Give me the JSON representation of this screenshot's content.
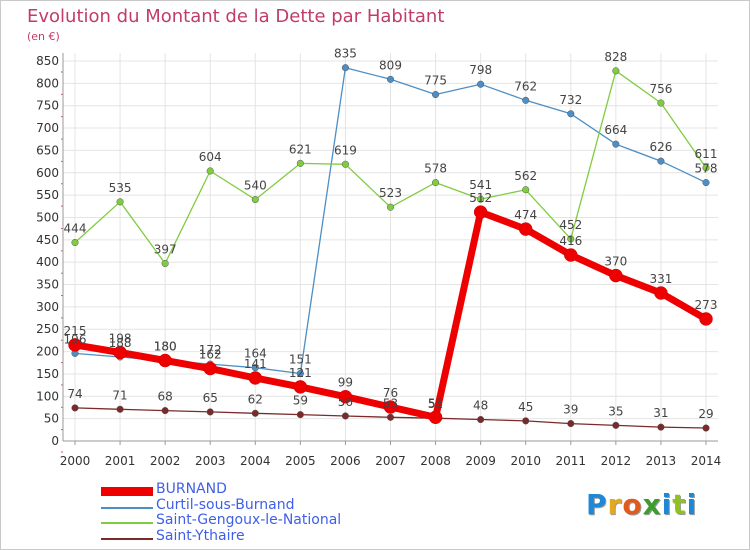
{
  "title": "Evolution du Montant de la Dette par Habitant",
  "subtitle": "(en €)",
  "logo": {
    "text": "Proxiti",
    "colors": [
      "#1e88d6",
      "#e5aa1b",
      "#e05a1b",
      "#3c9d2c",
      "#1e88d6",
      "#8fc21d",
      "#1e88d6"
    ]
  },
  "chart_data": {
    "type": "line",
    "title": "Evolution du Montant de la Dette par Habitant",
    "subtitle": "(en €)",
    "x": [
      "2000",
      "2001",
      "2002",
      "2003",
      "2004",
      "2005",
      "2006",
      "2007",
      "2008",
      "2009",
      "2010",
      "2011",
      "2012",
      "2013",
      "2014"
    ],
    "ylim": [
      0,
      850
    ],
    "yticks": [
      0,
      50,
      100,
      150,
      200,
      250,
      300,
      350,
      400,
      450,
      500,
      550,
      600,
      650,
      700,
      750,
      800,
      850
    ],
    "grid": true,
    "legend_position": "bottom-left",
    "series": [
      {
        "name": "BURNAND",
        "color": "#ee0000",
        "values": [
          215,
          198,
          180,
          162,
          141,
          121,
          99,
          76,
          53,
          512,
          474,
          416,
          370,
          331,
          273
        ]
      },
      {
        "name": "Curtil-sous-Burnand",
        "color": "#4d8ec4",
        "values": [
          196,
          188,
          180,
          172,
          164,
          151,
          835,
          809,
          775,
          798,
          762,
          732,
          664,
          626,
          578
        ]
      },
      {
        "name": "Saint-Gengoux-le-National",
        "color": "#80cc40",
        "values": [
          444,
          535,
          397,
          604,
          540,
          621,
          619,
          523,
          578,
          541,
          562,
          452,
          828,
          756,
          611
        ]
      },
      {
        "name": "Saint-Ythaire",
        "color": "#7a2a2a",
        "values": [
          74,
          71,
          68,
          65,
          62,
          59,
          56,
          53,
          51,
          48,
          45,
          39,
          35,
          31,
          29
        ]
      }
    ]
  }
}
